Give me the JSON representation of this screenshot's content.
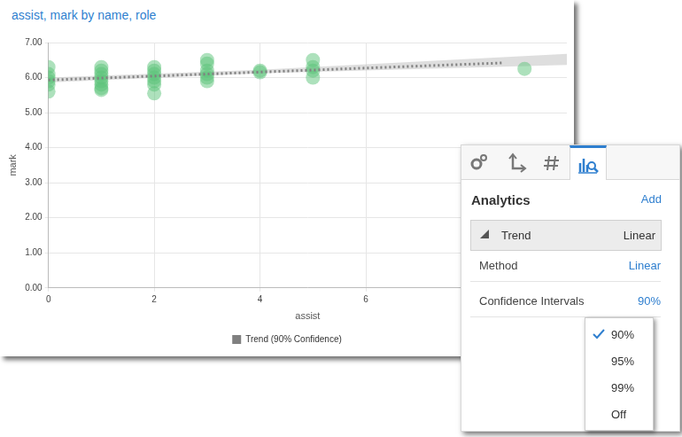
{
  "chart_data": {
    "type": "scatter",
    "title": "assist, mark by name, role",
    "x_label": "assist",
    "y_label": "mark",
    "xlim": [
      0,
      9.8
    ],
    "xticks": [
      0,
      2,
      4,
      6
    ],
    "ylim": [
      0,
      7
    ],
    "yticks": [
      {
        "value": 0,
        "label": "0.00"
      },
      {
        "value": 1,
        "label": "1.00"
      },
      {
        "value": 2,
        "label": "2.00"
      },
      {
        "value": 3,
        "label": "3.00"
      },
      {
        "value": 4,
        "label": "4.00"
      },
      {
        "value": 5,
        "label": "5.00"
      },
      {
        "value": 6,
        "label": "6.00"
      },
      {
        "value": 7,
        "label": "7.00"
      }
    ],
    "grid": true,
    "legend": "bottom",
    "series": [
      {
        "type": "band",
        "color": "#c8c8c8",
        "x": [
          0,
          4,
          9.8
        ],
        "lower": [
          5.86,
          6.12,
          6.36
        ],
        "upper": [
          6.0,
          6.22,
          6.68
        ]
      },
      {
        "type": "scatter",
        "marker": "circle",
        "color": "#5cc47a",
        "x": [
          0,
          0,
          0,
          0,
          0,
          0,
          1,
          1,
          1,
          1,
          1,
          1,
          1,
          1,
          2,
          2,
          2,
          2,
          2,
          2,
          2,
          3,
          3,
          3,
          3,
          3,
          3,
          4,
          4,
          5,
          5,
          5,
          5,
          9
        ],
        "values": [
          6.3,
          6.1,
          6.0,
          5.9,
          5.8,
          5.6,
          6.3,
          6.2,
          6.1,
          6.0,
          5.9,
          5.8,
          5.7,
          5.65,
          6.3,
          6.2,
          6.1,
          6.0,
          5.9,
          5.8,
          5.55,
          6.5,
          6.4,
          6.2,
          6.1,
          6.0,
          5.9,
          6.2,
          6.15,
          6.5,
          6.3,
          6.2,
          6.0,
          6.25
        ]
      },
      {
        "name": "Trend (90% Confidence)",
        "type": "line",
        "line_style": "dotted",
        "color": "#808080",
        "x": [
          0,
          8.6
        ],
        "values": [
          5.93,
          6.42
        ]
      }
    ]
  },
  "panel": {
    "title": "Analytics",
    "action": "Add",
    "section": {
      "label": "Trend",
      "value": "Linear"
    },
    "rows": [
      {
        "label": "Method",
        "value": "Linear"
      },
      {
        "label": "Confidence Intervals",
        "value": "90%"
      }
    ],
    "menu": {
      "items": [
        "90%",
        "95%",
        "99%",
        "Off"
      ],
      "selected": "90%"
    }
  }
}
